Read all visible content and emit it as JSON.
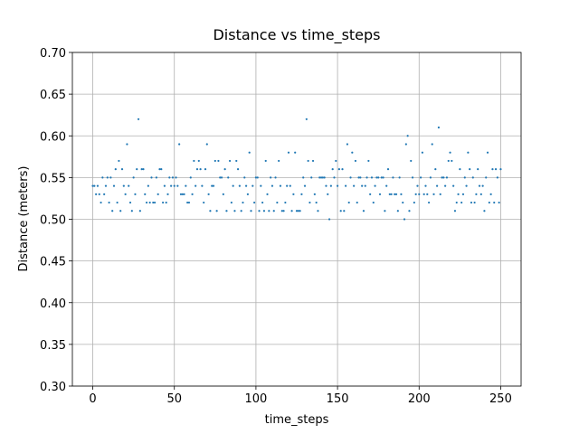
{
  "chart_data": {
    "type": "scatter",
    "title": "Distance vs time_steps",
    "xlabel": "time_steps",
    "ylabel": "Distance (meters)",
    "color": "#1f77b4",
    "grid": true,
    "xlim": [
      -12.5,
      262.5
    ],
    "ylim": [
      0.3,
      0.7
    ],
    "xticks": [
      0,
      50,
      100,
      150,
      200,
      250
    ],
    "yticks": [
      {
        "value": 0.3,
        "label": "0.30"
      },
      {
        "value": 0.35,
        "label": "0.35"
      },
      {
        "value": 0.4,
        "label": "0.40"
      },
      {
        "value": 0.45,
        "label": "0.45"
      },
      {
        "value": 0.5,
        "label": "0.50"
      },
      {
        "value": 0.55,
        "label": "0.55"
      },
      {
        "value": 0.6,
        "label": "0.60"
      },
      {
        "value": 0.65,
        "label": "0.65"
      },
      {
        "value": 0.7,
        "label": "0.70"
      }
    ],
    "x": [
      0,
      1,
      2,
      3,
      4,
      5,
      6,
      7,
      8,
      9,
      10,
      11,
      12,
      13,
      14,
      15,
      16,
      17,
      18,
      19,
      20,
      21,
      22,
      23,
      24,
      25,
      26,
      27,
      28,
      29,
      30,
      31,
      32,
      33,
      34,
      35,
      36,
      37,
      38,
      39,
      40,
      41,
      42,
      43,
      44,
      45,
      46,
      47,
      48,
      49,
      50,
      51,
      52,
      53,
      54,
      55,
      56,
      57,
      58,
      59,
      60,
      61,
      62,
      63,
      64,
      65,
      66,
      67,
      68,
      69,
      70,
      71,
      72,
      73,
      74,
      75,
      76,
      77,
      78,
      79,
      80,
      81,
      82,
      83,
      84,
      85,
      86,
      87,
      88,
      89,
      90,
      91,
      92,
      93,
      94,
      95,
      96,
      97,
      98,
      99,
      100,
      101,
      102,
      103,
      104,
      105,
      106,
      107,
      108,
      109,
      110,
      111,
      112,
      113,
      114,
      115,
      116,
      117,
      118,
      119,
      120,
      121,
      122,
      123,
      124,
      125,
      126,
      127,
      128,
      129,
      130,
      131,
      132,
      133,
      134,
      135,
      136,
      137,
      138,
      139,
      140,
      141,
      142,
      143,
      144,
      145,
      146,
      147,
      148,
      149,
      150,
      151,
      152,
      153,
      154,
      155,
      156,
      157,
      158,
      159,
      160,
      161,
      162,
      163,
      164,
      165,
      166,
      167,
      168,
      169,
      170,
      171,
      172,
      173,
      174,
      175,
      176,
      177,
      178,
      179,
      180,
      181,
      182,
      183,
      184,
      185,
      186,
      187,
      188,
      189,
      190,
      191,
      192,
      193,
      194,
      195,
      196,
      197,
      198,
      199,
      200,
      201,
      202,
      203,
      204,
      205,
      206,
      207,
      208,
      209,
      210,
      211,
      212,
      213,
      214,
      215,
      216,
      217,
      218,
      219,
      220,
      221,
      222,
      223,
      224,
      225,
      226,
      227,
      228,
      229,
      230,
      231,
      232,
      233,
      234,
      235,
      236,
      237,
      238,
      239,
      240,
      241,
      242,
      243,
      244,
      245,
      246,
      247,
      248,
      249,
      250
    ],
    "values": [
      0.54,
      0.54,
      0.53,
      0.54,
      0.53,
      0.52,
      0.55,
      0.53,
      0.54,
      0.55,
      0.52,
      0.55,
      0.51,
      0.54,
      0.56,
      0.52,
      0.57,
      0.51,
      0.56,
      0.54,
      0.53,
      0.59,
      0.54,
      0.52,
      0.51,
      0.55,
      0.53,
      0.56,
      0.62,
      0.51,
      0.56,
      0.56,
      0.53,
      0.52,
      0.54,
      0.52,
      0.55,
      0.52,
      0.52,
      0.55,
      0.53,
      0.56,
      0.56,
      0.52,
      0.54,
      0.52,
      0.53,
      0.55,
      0.54,
      0.55,
      0.54,
      0.55,
      0.54,
      0.59,
      0.53,
      0.53,
      0.53,
      0.54,
      0.52,
      0.52,
      0.55,
      0.53,
      0.57,
      0.54,
      0.56,
      0.57,
      0.56,
      0.54,
      0.52,
      0.56,
      0.59,
      0.53,
      0.51,
      0.54,
      0.54,
      0.57,
      0.51,
      0.57,
      0.55,
      0.55,
      0.53,
      0.56,
      0.51,
      0.55,
      0.57,
      0.52,
      0.54,
      0.51,
      0.57,
      0.56,
      0.54,
      0.51,
      0.52,
      0.55,
      0.54,
      0.53,
      0.58,
      0.51,
      0.54,
      0.52,
      0.55,
      0.55,
      0.51,
      0.54,
      0.52,
      0.51,
      0.57,
      0.53,
      0.51,
      0.55,
      0.54,
      0.51,
      0.55,
      0.52,
      0.57,
      0.54,
      0.51,
      0.51,
      0.52,
      0.54,
      0.58,
      0.54,
      0.51,
      0.53,
      0.58,
      0.51,
      0.51,
      0.51,
      0.53,
      0.55,
      0.54,
      0.62,
      0.57,
      0.52,
      0.55,
      0.57,
      0.53,
      0.52,
      0.51,
      0.55,
      0.55,
      0.55,
      0.55,
      0.54,
      0.53,
      0.5,
      0.54,
      0.56,
      0.55,
      0.57,
      0.54,
      0.56,
      0.51,
      0.56,
      0.51,
      0.54,
      0.59,
      0.52,
      0.55,
      0.58,
      0.54,
      0.57,
      0.52,
      0.55,
      0.55,
      0.54,
      0.51,
      0.54,
      0.55,
      0.57,
      0.53,
      0.55,
      0.52,
      0.54,
      0.55,
      0.55,
      0.53,
      0.55,
      0.55,
      0.51,
      0.54,
      0.56,
      0.53,
      0.53,
      0.55,
      0.53,
      0.53,
      0.51,
      0.55,
      0.53,
      0.52,
      0.5,
      0.59,
      0.6,
      0.51,
      0.57,
      0.55,
      0.52,
      0.53,
      0.54,
      0.53,
      0.55,
      0.58,
      0.53,
      0.54,
      0.53,
      0.52,
      0.55,
      0.59,
      0.53,
      0.56,
      0.54,
      0.61,
      0.53,
      0.55,
      0.55,
      0.54,
      0.55,
      0.57,
      0.58,
      0.57,
      0.54,
      0.51,
      0.52,
      0.53,
      0.56,
      0.52,
      0.53,
      0.55,
      0.54,
      0.58,
      0.56,
      0.52,
      0.55,
      0.52,
      0.53,
      0.56,
      0.54,
      0.53,
      0.54,
      0.51,
      0.55,
      0.58,
      0.52,
      0.53,
      0.56,
      0.52,
      0.56,
      0.55,
      0.52,
      0.56
    ]
  }
}
